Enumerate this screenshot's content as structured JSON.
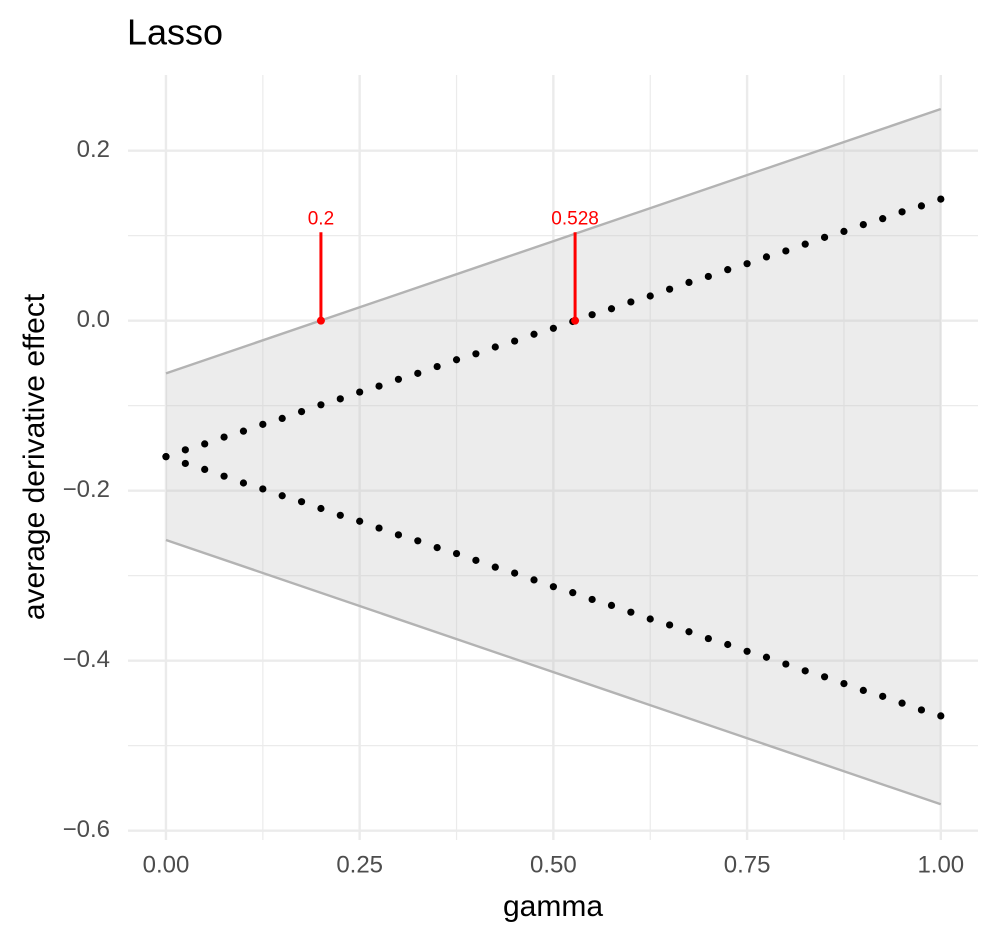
{
  "chart_data": {
    "type": "line",
    "title": "Lasso",
    "x_label": "gamma",
    "y_label": "average derivative effect",
    "xlim": [
      -0.049,
      1.048
    ],
    "ylim": [
      -0.611,
      0.289
    ],
    "xticks": [
      {
        "value": 0,
        "label": "0.00"
      },
      {
        "value": 0.25,
        "label": "0.25"
      },
      {
        "value": 0.5,
        "label": "0.50"
      },
      {
        "value": 0.75,
        "label": "0.75"
      },
      {
        "value": 1,
        "label": "1.00"
      }
    ],
    "yticks": [
      {
        "value": 0.2,
        "label": "0.2"
      },
      {
        "value": 0,
        "label": "0.0"
      },
      {
        "value": -0.2,
        "label": "−0.2"
      },
      {
        "value": -0.4,
        "label": "−0.4"
      },
      {
        "value": -0.6,
        "label": "−0.6"
      }
    ],
    "xminor": [
      0.125,
      0.375,
      0.625,
      0.875
    ],
    "yminor": [
      0.1,
      -0.1,
      -0.3,
      -0.5
    ],
    "grid": true,
    "band": {
      "x": [
        0,
        1
      ],
      "upper": [
        -0.062,
        0.249
      ],
      "lower": [
        -0.258,
        -0.569
      ],
      "fill": "#bfbfbf",
      "line_color": "#b3b3b3"
    },
    "x": [
      0,
      0.025,
      0.05,
      0.075,
      0.1,
      0.125,
      0.15,
      0.175,
      0.2,
      0.225,
      0.25,
      0.275,
      0.3,
      0.325,
      0.35,
      0.375,
      0.4,
      0.425,
      0.45,
      0.475,
      0.5,
      0.525,
      0.55,
      0.575,
      0.6,
      0.625,
      0.65,
      0.675,
      0.7,
      0.725,
      0.75,
      0.775,
      0.8,
      0.825,
      0.85,
      0.875,
      0.9,
      0.925,
      0.95,
      0.975,
      1
    ],
    "series": [
      {
        "color": "#000000",
        "values": [
          -0.16,
          -0.152,
          -0.145,
          -0.137,
          -0.13,
          -0.122,
          -0.115,
          -0.107,
          -0.099,
          -0.092,
          -0.084,
          -0.077,
          -0.069,
          -0.062,
          -0.054,
          -0.046,
          -0.039,
          -0.031,
          -0.024,
          -0.016,
          -0.009,
          -0.001,
          0.007,
          0.014,
          0.022,
          0.029,
          0.037,
          0.045,
          0.052,
          0.06,
          0.067,
          0.075,
          0.082,
          0.09,
          0.098,
          0.105,
          0.113,
          0.12,
          0.128,
          0.135,
          0.143
        ]
      },
      {
        "color": "#000000",
        "values": [
          -0.16,
          -0.168,
          -0.175,
          -0.183,
          -0.191,
          -0.198,
          -0.206,
          -0.213,
          -0.221,
          -0.229,
          -0.236,
          -0.244,
          -0.252,
          -0.259,
          -0.267,
          -0.274,
          -0.282,
          -0.29,
          -0.297,
          -0.305,
          -0.313,
          -0.32,
          -0.328,
          -0.335,
          -0.343,
          -0.351,
          -0.358,
          -0.366,
          -0.374,
          -0.381,
          -0.389,
          -0.396,
          -0.404,
          -0.412,
          -0.419,
          -0.427,
          -0.435,
          -0.442,
          -0.45,
          -0.458,
          -0.465
        ]
      }
    ],
    "markers": {
      "x": [
        0.2,
        0.528
      ],
      "y_from": 0,
      "y_to": 0.104,
      "color": "#ff0000"
    }
  }
}
